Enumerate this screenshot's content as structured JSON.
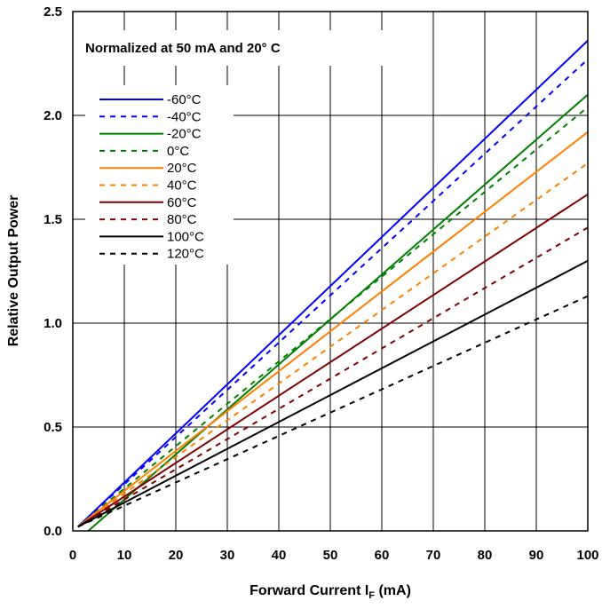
{
  "chart_data": {
    "type": "line",
    "annotation": "Normalized at 50 mA and 20° C",
    "xlabel_main": "Forward Current I",
    "xlabel_sub": "F",
    "xlabel_unit": " (mA)",
    "ylabel": "Relative Output Power",
    "xlim": [
      0,
      100
    ],
    "ylim": [
      0,
      2.5
    ],
    "xticks": [
      "0",
      "10",
      "20",
      "30",
      "40",
      "50",
      "60",
      "70",
      "80",
      "90",
      "100"
    ],
    "yticks": [
      "0.0",
      "0.5",
      "1.0",
      "1.5",
      "2.0",
      "2.5"
    ],
    "grid": true,
    "legend_position": "upper-left",
    "series": [
      {
        "name": "-60°C",
        "color": "#0000ff",
        "dashed": false,
        "x": [
          1,
          100
        ],
        "y": [
          0.02,
          2.36
        ]
      },
      {
        "name": "-40°C",
        "color": "#0000ff",
        "dashed": true,
        "x": [
          1,
          100
        ],
        "y": [
          0.02,
          2.27
        ]
      },
      {
        "name": "-20°C",
        "color": "#008000",
        "dashed": false,
        "x": [
          3,
          100
        ],
        "y": [
          0.0,
          2.1
        ]
      },
      {
        "name": "0°C",
        "color": "#008000",
        "dashed": true,
        "x": [
          1,
          100
        ],
        "y": [
          0.02,
          2.04
        ]
      },
      {
        "name": "20°C",
        "color": "#ff8000",
        "dashed": false,
        "x": [
          1,
          100
        ],
        "y": [
          0.02,
          1.92
        ]
      },
      {
        "name": "40°C",
        "color": "#ff8000",
        "dashed": true,
        "x": [
          1,
          100
        ],
        "y": [
          0.02,
          1.77
        ]
      },
      {
        "name": "60°C",
        "color": "#800000",
        "dashed": false,
        "x": [
          1,
          100
        ],
        "y": [
          0.02,
          1.62
        ]
      },
      {
        "name": "80°C",
        "color": "#800000",
        "dashed": true,
        "x": [
          1,
          100
        ],
        "y": [
          0.02,
          1.46
        ]
      },
      {
        "name": "100°C",
        "color": "#000000",
        "dashed": false,
        "x": [
          1,
          100
        ],
        "y": [
          0.02,
          1.3
        ]
      },
      {
        "name": "120°C",
        "color": "#000000",
        "dashed": true,
        "x": [
          1,
          100
        ],
        "y": [
          0.02,
          1.13
        ]
      }
    ]
  }
}
